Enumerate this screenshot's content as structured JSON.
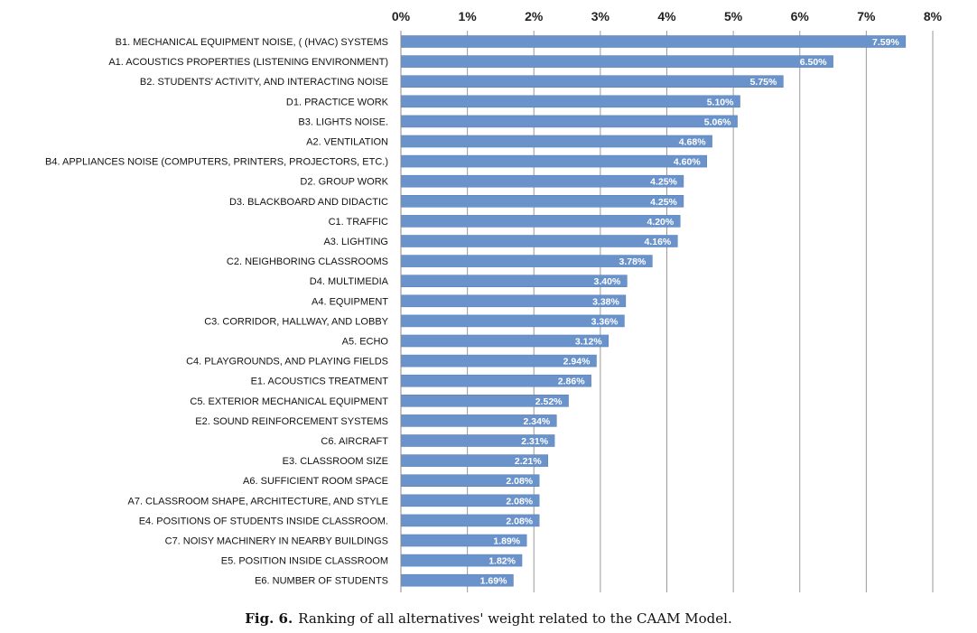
{
  "chart_data": {
    "type": "bar",
    "orientation": "horizontal",
    "xlim": [
      0,
      8
    ],
    "x_ticks": [
      "0%",
      "1%",
      "2%",
      "3%",
      "4%",
      "5%",
      "6%",
      "7%",
      "8%"
    ],
    "x_axis_position": "top",
    "grid": "vertical",
    "bar_color": "#6b93cb",
    "categories": [
      "B1. MECHANICAL  EQUIPMENT NOISE, ( (HVAC) SYSTEMS",
      "A1. ACOUSTICS PROPERTIES (LISTENING ENVIRONMENT)",
      "B2. STUDENTS' ACTIVITY, AND INTERACTING NOISE",
      "D1. PRACTICE WORK",
      "B3. LIGHTS NOISE.",
      "A2. VENTILATION",
      "B4. APPLIANCES NOISE (COMPUTERS, PRINTERS, PROJECTORS, ETC.)",
      "D2. GROUP WORK",
      "D3. BLACKBOARD AND DIDACTIC",
      "C1. TRAFFIC",
      "A3. LIGHTING",
      "C2. NEIGHBORING CLASSROOMS",
      "D4. MULTIMEDIA",
      "A4. EQUIPMENT",
      "C3. CORRIDOR, HALLWAY, AND LOBBY",
      "A5. ECHO",
      "C4. PLAYGROUNDS, AND PLAYING FIELDS",
      "E1. ACOUSTICS TREATMENT",
      "C5. EXTERIOR MECHANICAL  EQUIPMENT",
      "E2. SOUND REINFORCEMENT  SYSTEMS",
      "C6. AIRCRAFT",
      "E3. CLASSROOM SIZE",
      "A6. SUFFICIENT ROOM SPACE",
      "A7. CLASSROOM SHAPE, ARCHITECTURE, AND STYLE",
      "E4. POSITIONS OF STUDENTS  INSIDE CLASSROOM.",
      "C7. NOISY MACHINERY IN NEARBY BUILDINGS",
      "E5. POSITION INSIDE CLASSROOM",
      "E6. NUMBER OF STUDENTS"
    ],
    "values": [
      7.59,
      6.5,
      5.75,
      5.1,
      5.06,
      4.68,
      4.6,
      4.25,
      4.25,
      4.2,
      4.16,
      3.78,
      3.4,
      3.38,
      3.36,
      3.12,
      2.94,
      2.86,
      2.52,
      2.34,
      2.31,
      2.21,
      2.08,
      2.08,
      2.08,
      1.89,
      1.82,
      1.69
    ],
    "value_labels": [
      "7.59%",
      "6.50%",
      "5.75%",
      "5.10%",
      "5.06%",
      "4.68%",
      "4.60%",
      "4.25%",
      "4.25%",
      "4.20%",
      "4.16%",
      "3.78%",
      "3.40%",
      "3.38%",
      "3.36%",
      "3.12%",
      "2.94%",
      "2.86%",
      "2.52%",
      "2.34%",
      "2.31%",
      "2.21%",
      "2.08%",
      "2.08%",
      "2.08%",
      "1.89%",
      "1.82%",
      "1.69%"
    ]
  },
  "caption": {
    "label": "Fig. 6.",
    "text": "Ranking of all alternatives' weight related to the CAAM Model."
  }
}
